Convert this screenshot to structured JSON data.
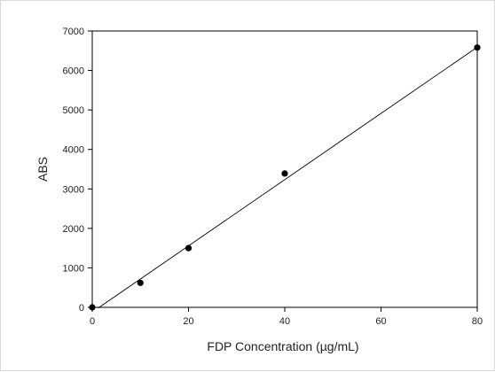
{
  "chart_data": {
    "type": "scatter",
    "title": "",
    "xlabel": "FDP Concentration (µg/mL)",
    "ylabel": "ABS",
    "xlim": [
      0,
      80
    ],
    "ylim": [
      0,
      7000
    ],
    "xticks": [
      0,
      20,
      40,
      60,
      80
    ],
    "yticks": [
      0,
      1000,
      2000,
      3000,
      4000,
      5000,
      6000,
      7000
    ],
    "grid": false,
    "legend": "none",
    "series": [
      {
        "x": [
          0,
          10,
          20,
          40,
          80
        ],
        "y": [
          0,
          620,
          1500,
          3390,
          6580
        ],
        "marker": "filled-circle",
        "color": "#000000"
      }
    ],
    "fit_line": {
      "type": "linear",
      "x": [
        1.2,
        80
      ],
      "y": [
        -20,
        6590
      ],
      "color": "#000000"
    }
  }
}
